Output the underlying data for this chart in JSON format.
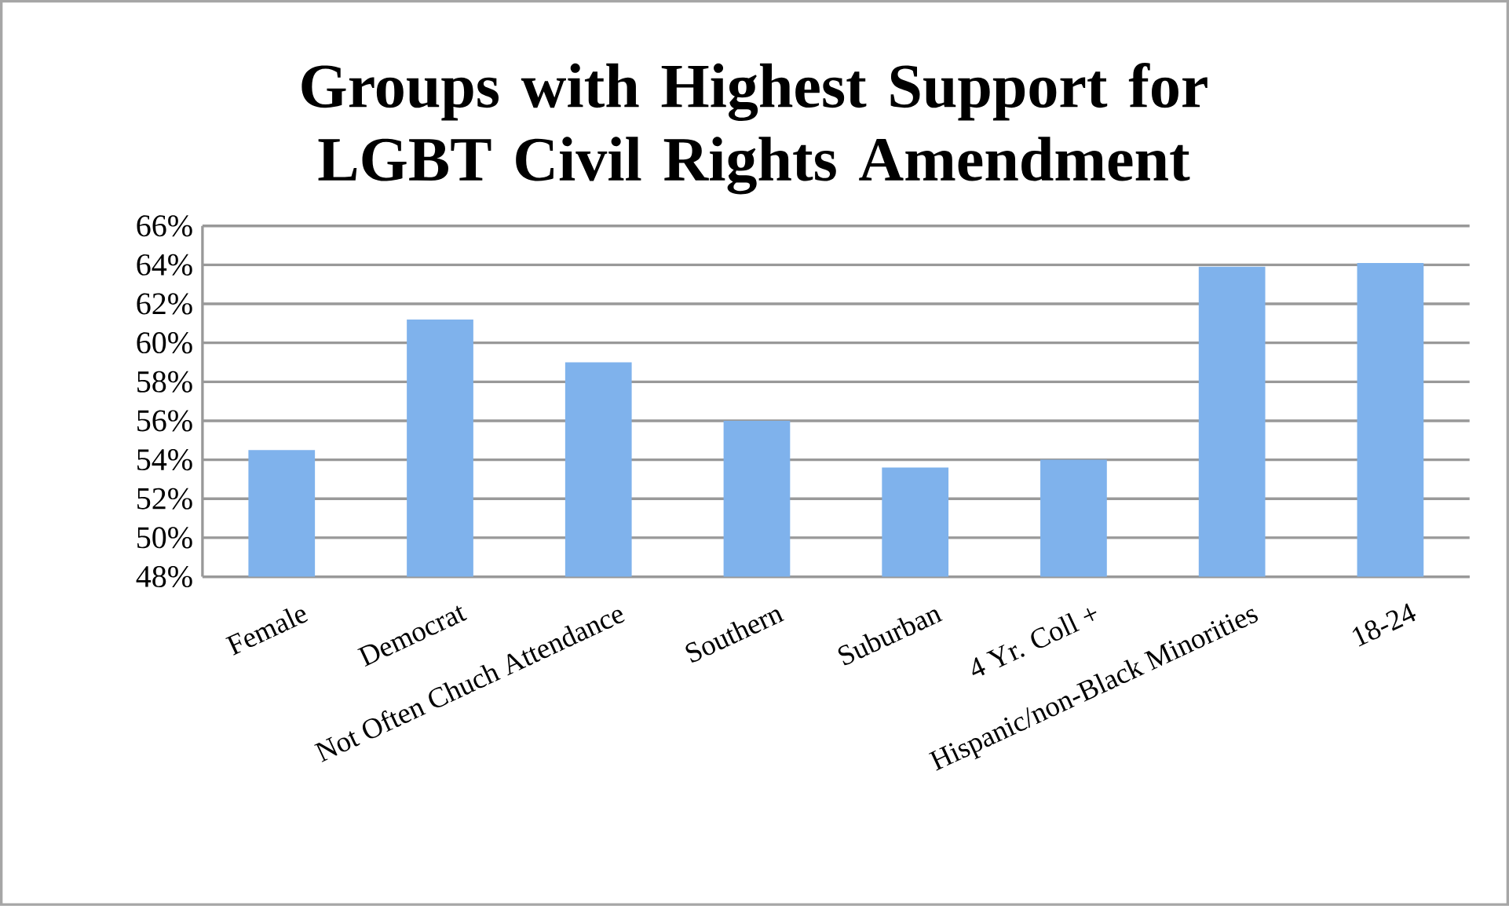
{
  "chart_data": {
    "type": "bar",
    "title": "Groups with Highest Support for LGBT Civil Rights Amendment",
    "categories": [
      "Female",
      "Democrat",
      "Not Often Chuch Attendance",
      "Southern",
      "Suburban",
      "4 Yr. Coll +",
      "Hispanic/non-Black Minorities",
      "18-24"
    ],
    "values": [
      54.5,
      61.2,
      59.0,
      56.0,
      53.6,
      54.0,
      63.9,
      64.1
    ],
    "color": "#7fb2ec",
    "ylim": [
      48,
      66
    ],
    "yticks": [
      {
        "value": 48,
        "label": "48%"
      },
      {
        "value": 50,
        "label": "50%"
      },
      {
        "value": 52,
        "label": "52%"
      },
      {
        "value": 54,
        "label": "54%"
      },
      {
        "value": 56,
        "label": "56%"
      },
      {
        "value": 58,
        "label": "58%"
      },
      {
        "value": 60,
        "label": "60%"
      },
      {
        "value": 62,
        "label": "62%"
      },
      {
        "value": 64,
        "label": "64%"
      },
      {
        "value": 66,
        "label": "66%"
      }
    ],
    "grid": "y"
  }
}
